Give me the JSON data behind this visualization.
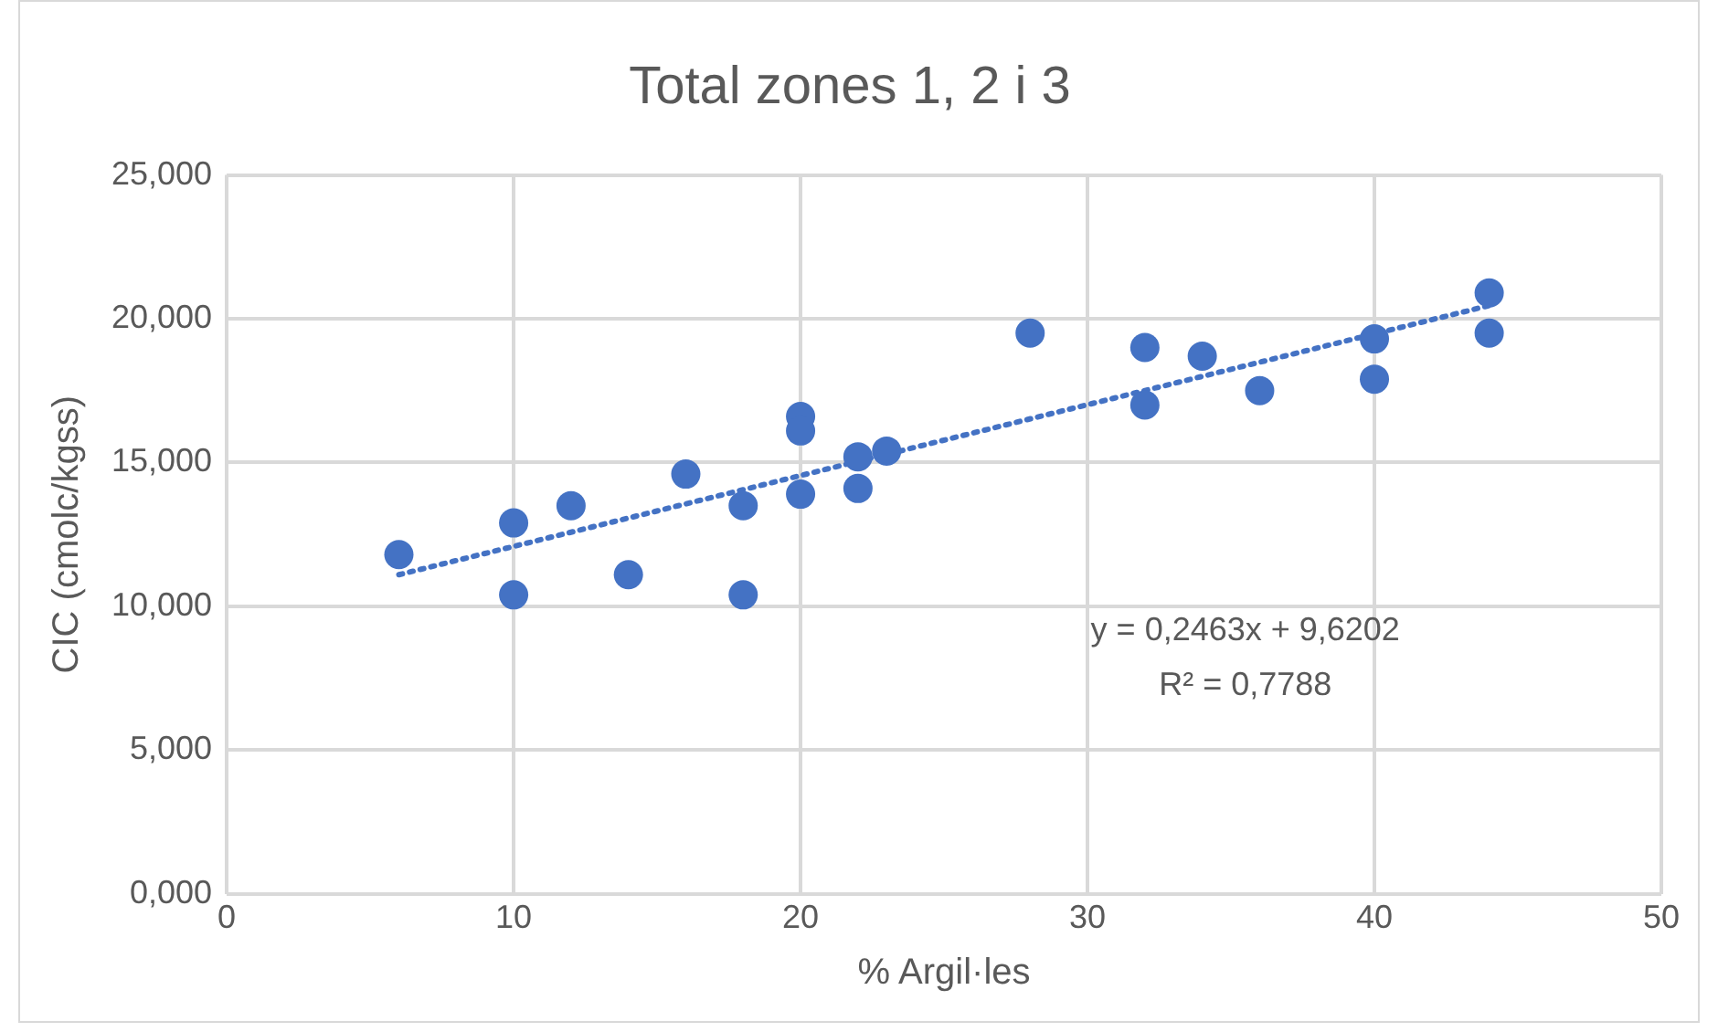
{
  "chart_data": {
    "type": "scatter",
    "title": "Total zones 1, 2 i 3",
    "xlabel": "% Argil·les",
    "ylabel": "CIC (cmolc/kgss)",
    "series": [
      {
        "color": "#4472c4",
        "x": [
          6,
          10,
          10,
          12,
          14,
          16,
          18,
          18,
          20,
          20,
          20,
          22,
          22,
          23,
          28,
          32,
          32,
          34,
          36,
          40,
          40,
          44,
          44
        ],
        "values": [
          11.8,
          12.9,
          10.4,
          13.5,
          11.1,
          14.6,
          13.5,
          10.4,
          16.6,
          16.1,
          13.9,
          15.2,
          14.1,
          15.4,
          19.5,
          19.0,
          17.0,
          18.7,
          17.5,
          19.3,
          17.9,
          20.9,
          19.5
        ]
      },
      {
        "type": "line",
        "color": "#4472c4",
        "line_style": "dotted",
        "marker": "none",
        "x": [
          6,
          44
        ],
        "values": [
          11.1,
          20.46
        ]
      }
    ],
    "xlim": [
      0,
      50
    ],
    "xticks": [
      0,
      10,
      20,
      30,
      40,
      50
    ],
    "ylim": [
      0,
      25
    ],
    "yticks": [
      {
        "value": 0,
        "label": "0,000"
      },
      {
        "value": 5,
        "label": "5,000"
      },
      {
        "value": 10,
        "label": "10,000"
      },
      {
        "value": 15,
        "label": "15,000"
      },
      {
        "value": 20,
        "label": "20,000"
      },
      {
        "value": 25,
        "label": "25,000"
      }
    ],
    "grid": true,
    "legend": false,
    "marker": "circle",
    "annotations": [
      "y = 0,2463x + 9,6202",
      "R² = 0,7788"
    ]
  }
}
